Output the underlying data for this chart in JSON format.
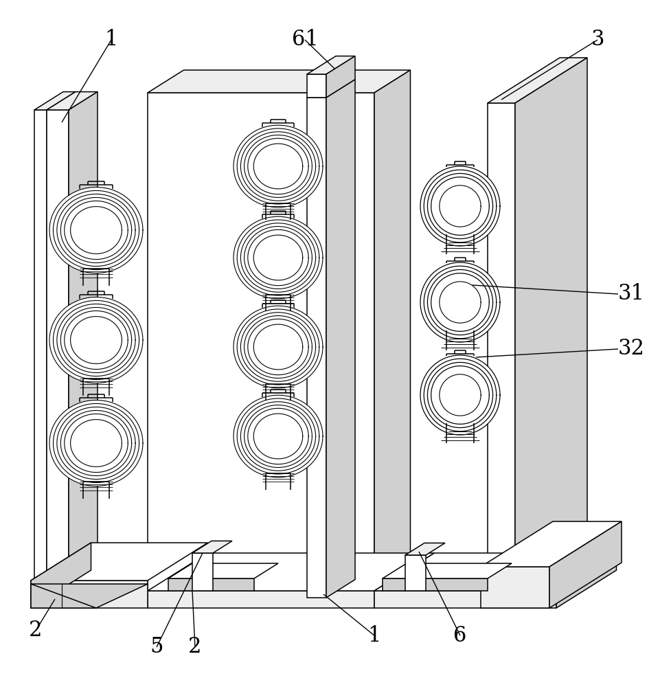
{
  "bg_color": "#ffffff",
  "line_color": "#000000",
  "lw": 1.1,
  "lw_thick": 1.6,
  "face_white": "#ffffff",
  "face_light": "#eeeeee",
  "face_mid": "#d0d0d0",
  "face_dark": "#b8b8b8"
}
